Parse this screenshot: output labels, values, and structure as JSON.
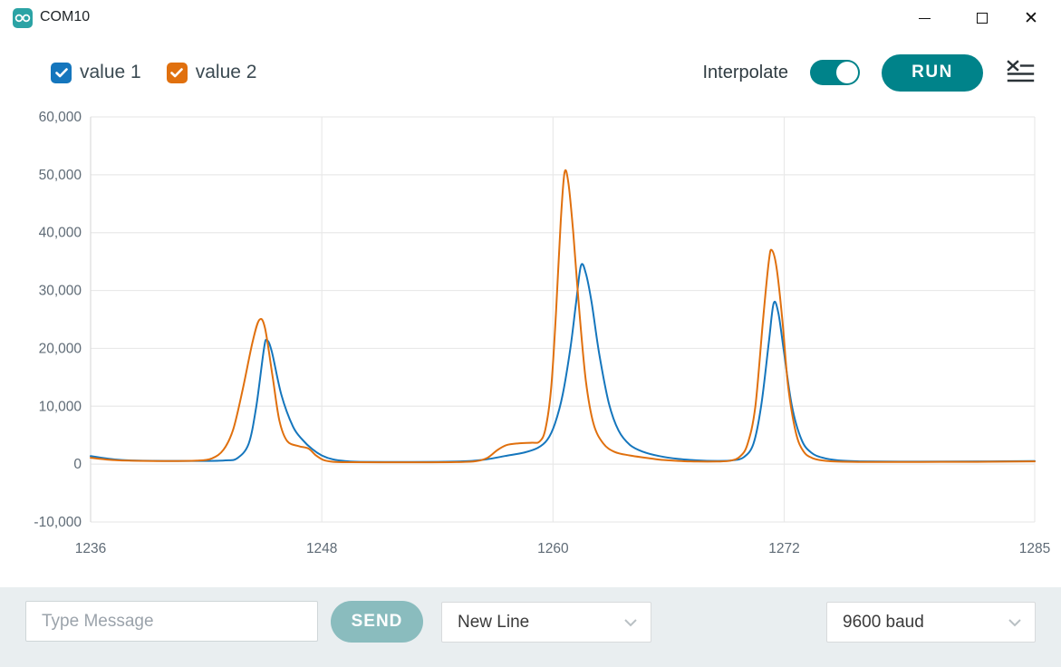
{
  "window": {
    "title": "COM10",
    "icons": [
      "arduino-infinity-icon",
      "minimize-icon",
      "maximize-icon",
      "close-icon"
    ]
  },
  "legend": {
    "series": [
      {
        "label": "value 1",
        "color": "#1576bd",
        "checked": true
      },
      {
        "label": "value 2",
        "color": "#e0700e",
        "checked": true
      }
    ]
  },
  "toolbar": {
    "interpolate_label": "Interpolate",
    "interpolate_on": true,
    "run_label": "RUN",
    "clear_icon": "clear-plot-icon",
    "accent_color": "#00838a"
  },
  "chart_data": {
    "type": "line",
    "title": "",
    "xlabel": "",
    "ylabel": "",
    "xlim": [
      1236,
      1285
    ],
    "ylim": [
      -10000,
      60000
    ],
    "grid": true,
    "legend_position": "top-left",
    "x_ticks": [
      {
        "v": 1236,
        "label": "1236"
      },
      {
        "v": 1248,
        "label": "1248"
      },
      {
        "v": 1260,
        "label": "1260"
      },
      {
        "v": 1272,
        "label": "1272"
      },
      {
        "v": 1285,
        "label": "1285"
      }
    ],
    "y_ticks": [
      {
        "v": -10000,
        "label": "-10,000"
      },
      {
        "v": 0,
        "label": "0"
      },
      {
        "v": 10000,
        "label": "10,000"
      },
      {
        "v": 20000,
        "label": "20,000"
      },
      {
        "v": 30000,
        "label": "30,000"
      },
      {
        "v": 40000,
        "label": "40,000"
      },
      {
        "v": 50000,
        "label": "50,000"
      },
      {
        "v": 60000,
        "label": "60,000"
      }
    ],
    "series": [
      {
        "name": "value 1",
        "color": "#1576bd",
        "points": [
          [
            1236,
            1400
          ],
          [
            1237,
            900
          ],
          [
            1238,
            650
          ],
          [
            1240,
            550
          ],
          [
            1242,
            550
          ],
          [
            1243,
            650
          ],
          [
            1243.6,
            1000
          ],
          [
            1244.2,
            3500
          ],
          [
            1244.6,
            10000
          ],
          [
            1245.0,
            20000
          ],
          [
            1245.15,
            21400
          ],
          [
            1245.4,
            19500
          ],
          [
            1245.9,
            12000
          ],
          [
            1246.5,
            6500
          ],
          [
            1247,
            4200
          ],
          [
            1247.5,
            2600
          ],
          [
            1248,
            1500
          ],
          [
            1248.6,
            800
          ],
          [
            1249.3,
            500
          ],
          [
            1250,
            400
          ],
          [
            1252,
            380
          ],
          [
            1254,
            400
          ],
          [
            1255.5,
            500
          ],
          [
            1256.5,
            800
          ],
          [
            1257.5,
            1400
          ],
          [
            1258.5,
            2000
          ],
          [
            1259.2,
            2800
          ],
          [
            1259.7,
            4200
          ],
          [
            1260.1,
            7000
          ],
          [
            1260.5,
            12000
          ],
          [
            1260.9,
            20000
          ],
          [
            1261.2,
            28000
          ],
          [
            1261.45,
            34300
          ],
          [
            1261.7,
            33000
          ],
          [
            1262,
            28000
          ],
          [
            1262.4,
            19000
          ],
          [
            1262.9,
            10500
          ],
          [
            1263.4,
            5800
          ],
          [
            1264,
            3300
          ],
          [
            1264.7,
            2100
          ],
          [
            1265.5,
            1400
          ],
          [
            1266.5,
            900
          ],
          [
            1267.5,
            650
          ],
          [
            1268.5,
            550
          ],
          [
            1269.3,
            650
          ],
          [
            1269.9,
            1200
          ],
          [
            1270.4,
            3500
          ],
          [
            1270.8,
            10000
          ],
          [
            1271.2,
            21000
          ],
          [
            1271.45,
            27800
          ],
          [
            1271.7,
            26000
          ],
          [
            1272,
            19000
          ],
          [
            1272.4,
            10000
          ],
          [
            1272.9,
            4200
          ],
          [
            1273.4,
            2000
          ],
          [
            1274,
            1100
          ],
          [
            1274.8,
            650
          ],
          [
            1276,
            480
          ],
          [
            1278,
            430
          ],
          [
            1281,
            450
          ],
          [
            1285,
            520
          ]
        ]
      },
      {
        "name": "value 2",
        "color": "#e0700e",
        "points": [
          [
            1236,
            1100
          ],
          [
            1237,
            750
          ],
          [
            1238,
            600
          ],
          [
            1240,
            520
          ],
          [
            1241.5,
            600
          ],
          [
            1242.3,
            1000
          ],
          [
            1242.9,
            2500
          ],
          [
            1243.4,
            6000
          ],
          [
            1243.9,
            13000
          ],
          [
            1244.4,
            21000
          ],
          [
            1244.75,
            24900
          ],
          [
            1245.05,
            23500
          ],
          [
            1245.45,
            15000
          ],
          [
            1245.8,
            7500
          ],
          [
            1246.2,
            4000
          ],
          [
            1246.8,
            3100
          ],
          [
            1247.3,
            2700
          ],
          [
            1247.7,
            1500
          ],
          [
            1248.1,
            700
          ],
          [
            1248.6,
            400
          ],
          [
            1249.5,
            330
          ],
          [
            1251,
            320
          ],
          [
            1253,
            320
          ],
          [
            1255,
            350
          ],
          [
            1256,
            500
          ],
          [
            1256.6,
            1100
          ],
          [
            1257.1,
            2400
          ],
          [
            1257.6,
            3300
          ],
          [
            1258.2,
            3600
          ],
          [
            1258.9,
            3700
          ],
          [
            1259.3,
            3900
          ],
          [
            1259.6,
            6000
          ],
          [
            1259.9,
            13000
          ],
          [
            1260.15,
            26000
          ],
          [
            1260.4,
            42000
          ],
          [
            1260.6,
            50400
          ],
          [
            1260.8,
            48500
          ],
          [
            1261.05,
            40000
          ],
          [
            1261.35,
            27000
          ],
          [
            1261.7,
            14500
          ],
          [
            1262.1,
            7000
          ],
          [
            1262.6,
            3600
          ],
          [
            1263.2,
            2100
          ],
          [
            1264,
            1500
          ],
          [
            1264.8,
            1100
          ],
          [
            1265.6,
            750
          ],
          [
            1266.5,
            550
          ],
          [
            1267.5,
            450
          ],
          [
            1268.5,
            450
          ],
          [
            1269.2,
            600
          ],
          [
            1269.7,
            1300
          ],
          [
            1270.1,
            3500
          ],
          [
            1270.5,
            10000
          ],
          [
            1270.9,
            25000
          ],
          [
            1271.2,
            35000
          ],
          [
            1271.35,
            37000
          ],
          [
            1271.6,
            34000
          ],
          [
            1271.9,
            25000
          ],
          [
            1272.2,
            13500
          ],
          [
            1272.6,
            5500
          ],
          [
            1273,
            2200
          ],
          [
            1273.5,
            1000
          ],
          [
            1274.2,
            550
          ],
          [
            1275.5,
            400
          ],
          [
            1278,
            380
          ],
          [
            1282,
            400
          ],
          [
            1285,
            480
          ]
        ]
      }
    ]
  },
  "bottom_bar": {
    "message_placeholder": "Type Message",
    "send_label": "SEND",
    "line_ending_selected": "New Line",
    "baud_rate_selected": "9600 baud",
    "send_color": "#8abcbe"
  },
  "colors": {
    "accent_teal": "#00838a",
    "app_icon_teal": "#2ba3a5",
    "grid_line": "#e9e9e9",
    "axis_label": "#5f6b76",
    "bottom_bar_bg": "#e9eef0"
  }
}
